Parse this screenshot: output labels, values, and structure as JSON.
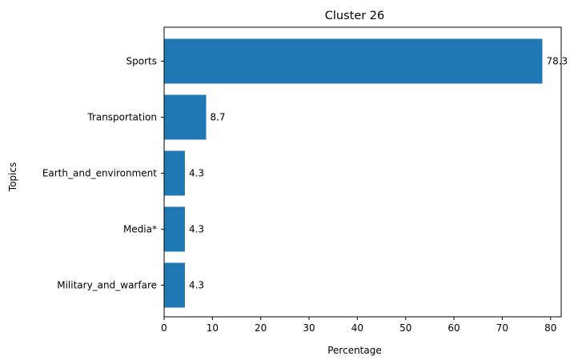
{
  "chart_data": {
    "type": "bar",
    "orientation": "horizontal",
    "title": "Cluster 26",
    "xlabel": "Percentage",
    "ylabel": "Topics",
    "categories": [
      "Sports",
      "Transportation",
      "Earth_and_environment",
      "Media*",
      "Military_and_warfare"
    ],
    "values": [
      78.3,
      8.7,
      4.3,
      4.3,
      4.3
    ],
    "value_labels": [
      "78.3",
      "8.7",
      "4.3",
      "4.3",
      "4.3"
    ],
    "xlim": [
      0,
      82.2
    ],
    "xticks": [
      0,
      10,
      20,
      30,
      40,
      50,
      60,
      70,
      80
    ],
    "bar_color": "#1f77b4",
    "grid": false,
    "legend": "none"
  }
}
